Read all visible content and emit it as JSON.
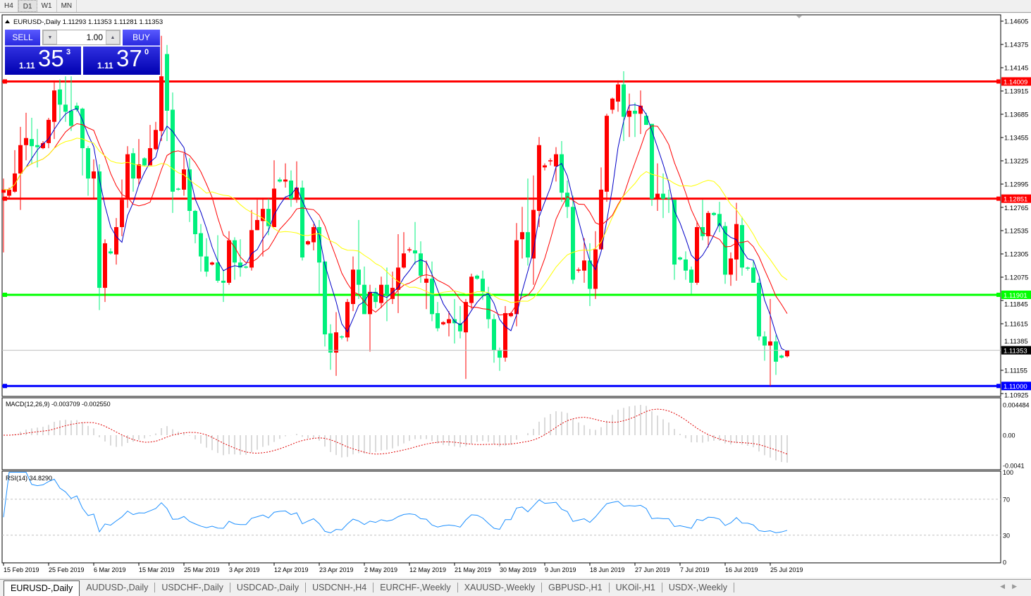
{
  "toolbar": {
    "timeframes": [
      "H4",
      "D1",
      "W1",
      "MN"
    ],
    "active": "D1"
  },
  "chart": {
    "symbol_header": "EURUSD-,Daily",
    "ohlc_header": "1.11293 1.11353 1.11281 1.11353",
    "bid_line": "1.11353",
    "levels": [
      {
        "price": "1.14009",
        "color": "#ff0000"
      },
      {
        "price": "1.12851",
        "color": "#ff0000"
      },
      {
        "price": "1.11901",
        "color": "#00ff00"
      },
      {
        "price": "1.11000",
        "color": "#0000ff"
      }
    ],
    "price_axis": [
      "1.14605",
      "1.14375",
      "1.14145",
      "1.13915",
      "1.13685",
      "1.13455",
      "1.13225",
      "1.12995",
      "1.12765",
      "1.12535",
      "1.12305",
      "1.12075",
      "1.11845",
      "1.11615",
      "1.11385",
      "1.11155",
      "1.10925"
    ],
    "candle_colors": {
      "up": "#ff0000",
      "down": "#00f07c"
    },
    "ma_colors": [
      "#0000c8",
      "#ff0000",
      "#ffff00"
    ]
  },
  "oneclick": {
    "sell_label": "SELL",
    "buy_label": "BUY",
    "lot": "1.00",
    "sell": {
      "prefix": "1.11",
      "big": "35",
      "sup": "3"
    },
    "buy": {
      "prefix": "1.11",
      "big": "37",
      "sup": "0"
    }
  },
  "macd": {
    "label": "MACD(12,26,9) -0.003709 -0.002550",
    "axis": [
      "0.004484",
      "0.00",
      "-0.0041"
    ]
  },
  "rsi": {
    "label": "RSI(14) 34.8290",
    "axis": [
      "100",
      "70",
      "30",
      "0"
    ]
  },
  "chart_data": {
    "type": "candlestick",
    "x_tick_labels": [
      "15 Feb 2019",
      "25 Feb 2019",
      "6 Mar 2019",
      "15 Mar 2019",
      "25 Mar 2019",
      "3 Apr 2019",
      "12 Apr 2019",
      "23 Apr 2019",
      "2 May 2019",
      "12 May 2019",
      "21 May 2019",
      "30 May 2019",
      "9 Jun 2019",
      "18 Jun 2019",
      "27 Jun 2019",
      "7 Jul 2019",
      "16 Jul 2019",
      "25 Jul 2019"
    ],
    "ylim": [
      1.10925,
      1.14605
    ],
    "ohlc": [
      [
        1.1291,
        1.1305,
        1.1232,
        1.1294
      ],
      [
        1.1288,
        1.1296,
        1.1286,
        1.1294
      ],
      [
        1.1292,
        1.1333,
        1.1291,
        1.131
      ],
      [
        1.131,
        1.1356,
        1.1274,
        1.1338
      ],
      [
        1.1338,
        1.137,
        1.1323,
        1.1345
      ],
      [
        1.1344,
        1.1365,
        1.1319,
        1.1337
      ],
      [
        1.1338,
        1.1354,
        1.1316,
        1.1336
      ],
      [
        1.1335,
        1.1342,
        1.1334,
        1.134
      ],
      [
        1.134,
        1.1365,
        1.1335,
        1.1363
      ],
      [
        1.1361,
        1.1402,
        1.1344,
        1.1392
      ],
      [
        1.1393,
        1.1403,
        1.1361,
        1.1378
      ],
      [
        1.1378,
        1.1406,
        1.1361,
        1.1371
      ],
      [
        1.1372,
        1.1406,
        1.1352,
        1.1357
      ],
      [
        1.1377,
        1.138,
        1.1371,
        1.1373
      ],
      [
        1.1374,
        1.1375,
        1.1308,
        1.1335
      ],
      [
        1.1335,
        1.1337,
        1.1288,
        1.1305
      ],
      [
        1.1305,
        1.1324,
        1.1285,
        1.1312
      ],
      [
        1.1312,
        1.1319,
        1.1175,
        1.1197
      ],
      [
        1.1197,
        1.1245,
        1.1183,
        1.1241
      ],
      [
        1.1233,
        1.1236,
        1.123,
        1.1231
      ],
      [
        1.123,
        1.1266,
        1.122,
        1.1257
      ],
      [
        1.1257,
        1.1304,
        1.1248,
        1.1284
      ],
      [
        1.1285,
        1.1337,
        1.1276,
        1.1329
      ],
      [
        1.133,
        1.1335,
        1.1292,
        1.1305
      ],
      [
        1.1305,
        1.1344,
        1.1298,
        1.1319
      ],
      [
        1.1325,
        1.1326,
        1.1317,
        1.1318
      ],
      [
        1.1318,
        1.1358,
        1.1318,
        1.1335
      ],
      [
        1.1334,
        1.1361,
        1.1333,
        1.1353
      ],
      [
        1.1352,
        1.1446,
        1.1342,
        1.1406
      ],
      [
        1.1428,
        1.1437,
        1.1342,
        1.1372
      ],
      [
        1.1373,
        1.139,
        1.1271,
        1.1292
      ],
      [
        1.1295,
        1.1296,
        1.1293,
        1.1294
      ],
      [
        1.1294,
        1.133,
        1.1288,
        1.1314
      ],
      [
        1.1314,
        1.1325,
        1.1262,
        1.1273
      ],
      [
        1.1273,
        1.1274,
        1.1241,
        1.125
      ],
      [
        1.1251,
        1.126,
        1.1213,
        1.1228
      ],
      [
        1.1228,
        1.1246,
        1.1208,
        1.1213
      ],
      [
        1.122,
        1.1223,
        1.1219,
        1.1222
      ],
      [
        1.1222,
        1.1249,
        1.1202,
        1.1204
      ],
      [
        1.1204,
        1.1215,
        1.1183,
        1.1202
      ],
      [
        1.1202,
        1.1253,
        1.12,
        1.1244
      ],
      [
        1.1244,
        1.1247,
        1.1205,
        1.1222
      ],
      [
        1.1222,
        1.1245,
        1.1208,
        1.1217
      ],
      [
        1.1218,
        1.1219,
        1.1216,
        1.1217
      ],
      [
        1.1217,
        1.1274,
        1.1214,
        1.1254
      ],
      [
        1.1254,
        1.1284,
        1.1254,
        1.1264
      ],
      [
        1.1263,
        1.1286,
        1.1228,
        1.1275
      ],
      [
        1.1275,
        1.1285,
        1.1249,
        1.1258
      ],
      [
        1.1257,
        1.1323,
        1.1257,
        1.1295
      ],
      [
        1.1304,
        1.1306,
        1.1301,
        1.1302
      ],
      [
        1.1302,
        1.132,
        1.1296,
        1.1304
      ],
      [
        1.1303,
        1.1313,
        1.1277,
        1.1285
      ],
      [
        1.1284,
        1.1322,
        1.1281,
        1.1296
      ],
      [
        1.1296,
        1.1303,
        1.1224,
        1.1227
      ],
      [
        1.124,
        1.1244,
        1.1239,
        1.1243
      ],
      [
        1.1242,
        1.126,
        1.1234,
        1.1257
      ],
      [
        1.1257,
        1.1264,
        1.119,
        1.1222
      ],
      [
        1.1223,
        1.1223,
        1.1139,
        1.1151
      ],
      [
        1.1152,
        1.1161,
        1.1116,
        1.1133
      ],
      [
        1.1133,
        1.1173,
        1.111,
        1.1153
      ],
      [
        1.1149,
        1.115,
        1.1146,
        1.1148
      ],
      [
        1.1148,
        1.1186,
        1.1144,
        1.1183
      ],
      [
        1.1181,
        1.1228,
        1.1174,
        1.1215
      ],
      [
        1.1215,
        1.1264,
        1.1186,
        1.12
      ],
      [
        1.12,
        1.1218,
        1.1171,
        1.1171
      ],
      [
        1.1171,
        1.12,
        1.1134,
        1.1193
      ],
      [
        1.1193,
        1.1197,
        1.1177,
        1.1183
      ],
      [
        1.1182,
        1.1208,
        1.1177,
        1.12
      ],
      [
        1.12,
        1.1217,
        1.1164,
        1.119
      ],
      [
        1.1186,
        1.1213,
        1.1181,
        1.1197
      ],
      [
        1.1195,
        1.125,
        1.1172,
        1.1217
      ],
      [
        1.1217,
        1.1252,
        1.1216,
        1.1231
      ],
      [
        1.1234,
        1.1237,
        1.1232,
        1.1235
      ],
      [
        1.1234,
        1.1262,
        1.122,
        1.1231
      ],
      [
        1.1231,
        1.1243,
        1.1202,
        1.1209
      ],
      [
        1.1202,
        1.1224,
        1.1176,
        1.1206
      ],
      [
        1.1206,
        1.1223,
        1.1164,
        1.1171
      ],
      [
        1.1172,
        1.1183,
        1.1154,
        1.1157
      ],
      [
        1.1161,
        1.1164,
        1.116,
        1.1163
      ],
      [
        1.1162,
        1.1174,
        1.1149,
        1.1166
      ],
      [
        1.1166,
        1.1186,
        1.1142,
        1.1162
      ],
      [
        1.1162,
        1.1179,
        1.1147,
        1.1154
      ],
      [
        1.1153,
        1.1186,
        1.1107,
        1.1183
      ],
      [
        1.1182,
        1.1211,
        1.1176,
        1.1208
      ],
      [
        1.1209,
        1.121,
        1.1205,
        1.1206
      ],
      [
        1.1206,
        1.1214,
        1.1185,
        1.1193
      ],
      [
        1.1192,
        1.1198,
        1.1157,
        1.1166
      ],
      [
        1.1166,
        1.1171,
        1.1123,
        1.1135
      ],
      [
        1.1135,
        1.1138,
        1.1115,
        1.1128
      ],
      [
        1.1128,
        1.1179,
        1.1124,
        1.1172
      ],
      [
        1.1169,
        1.1173,
        1.1168,
        1.1172
      ],
      [
        1.1171,
        1.1261,
        1.1159,
        1.1244
      ],
      [
        1.1245,
        1.1277,
        1.1226,
        1.1252
      ],
      [
        1.1252,
        1.1305,
        1.1219,
        1.1227
      ],
      [
        1.1226,
        1.1308,
        1.12,
        1.1274
      ],
      [
        1.1273,
        1.1346,
        1.1257,
        1.1338
      ],
      [
        1.1316,
        1.132,
        1.1313,
        1.1318
      ],
      [
        1.1322,
        1.1325,
        1.1318,
        1.1323
      ],
      [
        1.1317,
        1.1336,
        1.1302,
        1.1329
      ],
      [
        1.1329,
        1.1342,
        1.1282,
        1.1291
      ],
      [
        1.1291,
        1.1303,
        1.1266,
        1.1277
      ],
      [
        1.1277,
        1.1288,
        1.1201,
        1.1205
      ],
      [
        1.1214,
        1.1217,
        1.1212,
        1.1215
      ],
      [
        1.1214,
        1.1246,
        1.1202,
        1.1224
      ],
      [
        1.1224,
        1.1241,
        1.1179,
        1.1196
      ],
      [
        1.1196,
        1.1253,
        1.1186,
        1.1235
      ],
      [
        1.1235,
        1.1316,
        1.1235,
        1.1294
      ],
      [
        1.1292,
        1.1369,
        1.1282,
        1.1367
      ],
      [
        1.1373,
        1.1385,
        1.1369,
        1.1384
      ],
      [
        1.1381,
        1.1402,
        1.1371,
        1.1398
      ],
      [
        1.1398,
        1.1411,
        1.1342,
        1.1366
      ],
      [
        1.1366,
        1.1389,
        1.1346,
        1.1372
      ],
      [
        1.1372,
        1.138,
        1.1346,
        1.1369
      ],
      [
        1.1369,
        1.1392,
        1.1349,
        1.1377
      ],
      [
        1.1367,
        1.137,
        1.1358,
        1.1358
      ],
      [
        1.1359,
        1.1359,
        1.1278,
        1.1285
      ],
      [
        1.1285,
        1.132,
        1.1273,
        1.129
      ],
      [
        1.129,
        1.131,
        1.1266,
        1.1285
      ],
      [
        1.1286,
        1.1294,
        1.1271,
        1.1285
      ],
      [
        1.1284,
        1.1284,
        1.1205,
        1.122
      ],
      [
        1.1227,
        1.1228,
        1.1224,
        1.1225
      ],
      [
        1.1225,
        1.1233,
        1.1205,
        1.1214
      ],
      [
        1.1215,
        1.1218,
        1.1191,
        1.1202
      ],
      [
        1.1202,
        1.1263,
        1.12,
        1.1257
      ],
      [
        1.1257,
        1.1284,
        1.1244,
        1.1248
      ],
      [
        1.1248,
        1.1273,
        1.1237,
        1.1271
      ],
      [
        1.1271,
        1.1272,
        1.1268,
        1.1269
      ],
      [
        1.127,
        1.1282,
        1.1252,
        1.1258
      ],
      [
        1.1258,
        1.1262,
        1.1201,
        1.121
      ],
      [
        1.121,
        1.1232,
        1.1199,
        1.1226
      ],
      [
        1.1225,
        1.1281,
        1.1204,
        1.126
      ],
      [
        1.1259,
        1.1267,
        1.1209,
        1.1217
      ],
      [
        1.1217,
        1.1218,
        1.1214,
        1.1216
      ],
      [
        1.1217,
        1.1224,
        1.1202,
        1.1202
      ],
      [
        1.1202,
        1.1206,
        1.1145,
        1.1149
      ],
      [
        1.1149,
        1.1154,
        1.1125,
        1.114
      ],
      [
        1.114,
        1.1186,
        1.11,
        1.1144
      ],
      [
        1.1144,
        1.115,
        1.1111,
        1.1124
      ],
      [
        1.113,
        1.1131,
        1.1127,
        1.1128
      ],
      [
        1.11293,
        1.11353,
        1.11281,
        1.11353
      ]
    ]
  },
  "tabs": [
    "EURUSD-,Daily",
    "AUDUSD-,Daily",
    "USDCHF-,Daily",
    "USDCAD-,Daily",
    "USDCNH-,H4",
    "EURCHF-,Weekly",
    "XAUUSD-,Weekly",
    "GBPUSD-,H1",
    "UKOil-,H1",
    "USDX-,Weekly"
  ],
  "tab_active": "EURUSD-,Daily"
}
